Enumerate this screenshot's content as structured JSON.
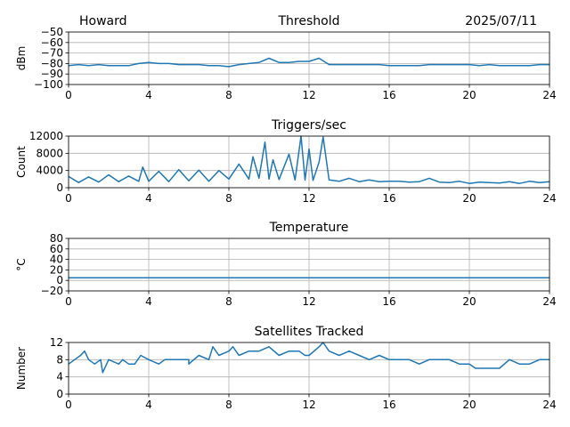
{
  "header": {
    "station": "Howard",
    "date": "2025/07/11"
  },
  "chart_data": [
    {
      "type": "line",
      "title": "Threshold",
      "ylabel": "dBm",
      "xlim": [
        0,
        24
      ],
      "ylim": [
        -100,
        -50
      ],
      "xticks": [
        0,
        4,
        8,
        12,
        16,
        20,
        24
      ],
      "xtick_labels": [
        "0",
        "4",
        "8",
        "12",
        "16",
        "20",
        "24"
      ],
      "yticks": [
        -100,
        -90,
        -80,
        -70,
        -60,
        -50
      ],
      "ytick_labels": [
        "−100",
        "−90",
        "−80",
        "−70",
        "−60",
        "−50"
      ],
      "grid": true,
      "series": [
        {
          "color": "#1f77b4",
          "x": [
            0,
            0.5,
            1,
            1.5,
            2,
            2.5,
            3,
            3.5,
            4,
            4.5,
            5,
            5.5,
            6,
            6.5,
            7,
            7.5,
            8,
            8.5,
            9,
            9.5,
            10,
            10.5,
            11,
            11.5,
            12,
            12.5,
            13,
            13.5,
            14,
            14.5,
            15,
            15.5,
            16,
            16.5,
            17,
            17.5,
            18,
            18.5,
            19,
            19.5,
            20,
            20.5,
            21,
            21.5,
            22,
            22.5,
            23,
            23.5,
            24
          ],
          "y": [
            -82,
            -81,
            -82,
            -81,
            -82,
            -82,
            -82,
            -80,
            -79,
            -80,
            -80,
            -81,
            -81,
            -81,
            -82,
            -82,
            -83,
            -81,
            -80,
            -79,
            -75,
            -79,
            -79,
            -78,
            -78,
            -75,
            -81,
            -81,
            -81,
            -81,
            -81,
            -81,
            -82,
            -82,
            -82,
            -82,
            -81,
            -81,
            -81,
            -81,
            -81,
            -82,
            -81,
            -82,
            -82,
            -82,
            -82,
            -81,
            -81
          ]
        }
      ]
    },
    {
      "type": "line",
      "title": "Triggers/sec",
      "ylabel": "Count",
      "xlim": [
        0,
        24
      ],
      "ylim": [
        0,
        12000
      ],
      "xticks": [
        0,
        4,
        8,
        12,
        16,
        20,
        24
      ],
      "xtick_labels": [
        "0",
        "4",
        "8",
        "12",
        "16",
        "20",
        "24"
      ],
      "yticks": [
        0,
        4000,
        8000,
        12000
      ],
      "ytick_labels": [
        "0",
        "4000",
        "8000",
        "12000"
      ],
      "grid": true,
      "series": [
        {
          "color": "#1f77b4",
          "x": [
            0,
            0.5,
            1,
            1.5,
            2,
            2.5,
            3,
            3.5,
            3.7,
            4,
            4.5,
            5,
            5.5,
            6,
            6.5,
            7,
            7.5,
            8,
            8.5,
            9,
            9.2,
            9.5,
            9.8,
            10,
            10.2,
            10.5,
            11,
            11.3,
            11.6,
            11.8,
            12,
            12.2,
            12.5,
            12.7,
            13,
            13.5,
            14,
            14.5,
            15,
            15.5,
            16,
            16.5,
            17,
            17.5,
            18,
            18.5,
            19,
            19.5,
            20,
            20.5,
            21,
            21.5,
            22,
            22.5,
            23,
            23.5,
            24
          ],
          "y": [
            2600,
            1200,
            2500,
            1300,
            3000,
            1400,
            2700,
            1500,
            4800,
            1500,
            3800,
            1400,
            4200,
            1600,
            4100,
            1500,
            4000,
            2000,
            5500,
            2000,
            7200,
            2200,
            10600,
            2000,
            6500,
            1900,
            7800,
            1800,
            12000,
            1800,
            9000,
            1700,
            6000,
            11800,
            1800,
            1500,
            2200,
            1400,
            1800,
            1400,
            1500,
            1500,
            1300,
            1400,
            2200,
            1300,
            1200,
            1500,
            1000,
            1300,
            1200,
            1100,
            1400,
            1000,
            1500,
            1200,
            1400
          ]
        }
      ]
    },
    {
      "type": "line",
      "title": "Temperature",
      "ylabel": "°C",
      "xlim": [
        0,
        24
      ],
      "ylim": [
        -20,
        80
      ],
      "xticks": [
        0,
        4,
        8,
        12,
        16,
        20,
        24
      ],
      "xtick_labels": [
        "0",
        "4",
        "8",
        "12",
        "16",
        "20",
        "24"
      ],
      "yticks": [
        -20,
        0,
        20,
        40,
        60,
        80
      ],
      "ytick_labels": [
        "−20",
        "0",
        "20",
        "40",
        "60",
        "80"
      ],
      "grid": true,
      "series": [
        {
          "color": "#1f77b4",
          "x": [
            0,
            24
          ],
          "y": [
            5,
            5
          ]
        }
      ]
    },
    {
      "type": "line",
      "title": "Satellites Tracked",
      "ylabel": "Number",
      "xlim": [
        0,
        24
      ],
      "ylim": [
        0,
        12
      ],
      "xticks": [
        0,
        4,
        8,
        12,
        16,
        20,
        24
      ],
      "xtick_labels": [
        "0",
        "4",
        "8",
        "12",
        "16",
        "20",
        "24"
      ],
      "yticks": [
        0,
        4,
        8,
        12
      ],
      "ytick_labels": [
        "0",
        "4",
        "8",
        "12"
      ],
      "grid": true,
      "series": [
        {
          "color": "#1f77b4",
          "x": [
            0,
            0.3,
            0.6,
            0.8,
            1,
            1.3,
            1.6,
            1.7,
            2,
            2.5,
            2.7,
            3,
            3.3,
            3.6,
            4,
            4.5,
            4.8,
            5,
            5.5,
            6,
            6,
            6.5,
            7,
            7.2,
            7.5,
            8,
            8.2,
            8.5,
            9,
            9.5,
            10,
            10.5,
            11,
            11.5,
            11.8,
            12,
            12.5,
            12.7,
            13,
            13.5,
            14,
            14.5,
            15,
            15.5,
            16,
            16.5,
            17,
            17.5,
            18,
            18.5,
            19,
            19.5,
            20,
            20.3,
            20.5,
            21,
            21.5,
            22,
            22.5,
            23,
            23.5,
            24
          ],
          "y": [
            7,
            8,
            9,
            10,
            8,
            7,
            8,
            5,
            8,
            7,
            8,
            7,
            7,
            9,
            8,
            7,
            8,
            8,
            8,
            8,
            7,
            9,
            8,
            11,
            9,
            10,
            11,
            9,
            10,
            10,
            11,
            9,
            10,
            10,
            9,
            9,
            11,
            12,
            10,
            9,
            10,
            9,
            8,
            9,
            8,
            8,
            8,
            7,
            8,
            8,
            8,
            7,
            7,
            6,
            6,
            6,
            6,
            8,
            7,
            7,
            8,
            8
          ]
        }
      ]
    }
  ]
}
